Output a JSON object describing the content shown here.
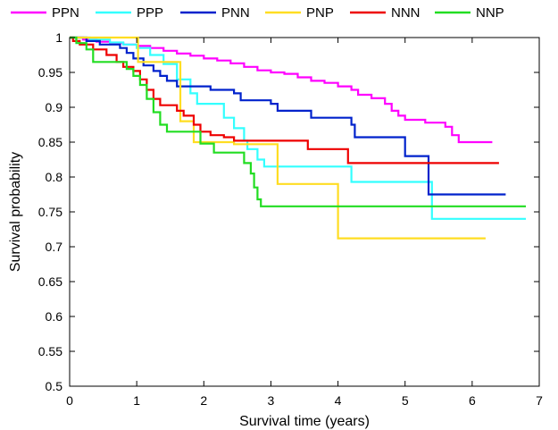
{
  "chart_data": {
    "type": "line",
    "step": true,
    "xlabel": "Survival time (years)",
    "ylabel": "Survival probability",
    "xlim": [
      0,
      7
    ],
    "ylim": [
      0.5,
      1
    ],
    "xticks": [
      0,
      1,
      2,
      3,
      4,
      5,
      6,
      7
    ],
    "yticks": [
      0.5,
      0.55,
      0.6,
      0.65,
      0.7,
      0.75,
      0.8,
      0.85,
      0.9,
      0.95,
      1
    ],
    "grid": false,
    "legend_position": "top",
    "series": [
      {
        "name": "PPN",
        "color": "#ff00ff",
        "points": [
          [
            0,
            1
          ],
          [
            0.2,
            0.997
          ],
          [
            0.4,
            0.994
          ],
          [
            0.6,
            0.992
          ],
          [
            0.8,
            0.99
          ],
          [
            1.0,
            0.988
          ],
          [
            1.2,
            0.985
          ],
          [
            1.4,
            0.981
          ],
          [
            1.6,
            0.977
          ],
          [
            1.8,
            0.974
          ],
          [
            2.0,
            0.97
          ],
          [
            2.2,
            0.967
          ],
          [
            2.4,
            0.963
          ],
          [
            2.6,
            0.958
          ],
          [
            2.8,
            0.953
          ],
          [
            3.0,
            0.95
          ],
          [
            3.2,
            0.948
          ],
          [
            3.4,
            0.943
          ],
          [
            3.6,
            0.938
          ],
          [
            3.8,
            0.935
          ],
          [
            4.0,
            0.93
          ],
          [
            4.2,
            0.925
          ],
          [
            4.3,
            0.918
          ],
          [
            4.5,
            0.913
          ],
          [
            4.7,
            0.905
          ],
          [
            4.8,
            0.895
          ],
          [
            4.9,
            0.888
          ],
          [
            5.0,
            0.882
          ],
          [
            5.3,
            0.878
          ],
          [
            5.6,
            0.872
          ],
          [
            5.7,
            0.86
          ],
          [
            5.8,
            0.85
          ],
          [
            6.3,
            0.85
          ]
        ]
      },
      {
        "name": "PPP",
        "color": "#33ffff",
        "points": [
          [
            0,
            1
          ],
          [
            0.3,
            0.997
          ],
          [
            0.6,
            0.993
          ],
          [
            0.8,
            0.99
          ],
          [
            1.0,
            0.985
          ],
          [
            1.2,
            0.975
          ],
          [
            1.4,
            0.962
          ],
          [
            1.6,
            0.94
          ],
          [
            1.8,
            0.92
          ],
          [
            1.9,
            0.905
          ],
          [
            2.1,
            0.905
          ],
          [
            2.3,
            0.885
          ],
          [
            2.45,
            0.87
          ],
          [
            2.6,
            0.852
          ],
          [
            2.65,
            0.84
          ],
          [
            2.8,
            0.825
          ],
          [
            2.9,
            0.815
          ],
          [
            3.5,
            0.815
          ],
          [
            4.0,
            0.815
          ],
          [
            4.2,
            0.793
          ],
          [
            5.0,
            0.793
          ],
          [
            5.35,
            0.793
          ],
          [
            5.4,
            0.74
          ],
          [
            6.8,
            0.74
          ]
        ]
      },
      {
        "name": "PNN",
        "color": "#0022cc",
        "points": [
          [
            0,
            1
          ],
          [
            0.25,
            0.995
          ],
          [
            0.45,
            0.99
          ],
          [
            0.75,
            0.985
          ],
          [
            0.85,
            0.978
          ],
          [
            0.95,
            0.97
          ],
          [
            1.1,
            0.96
          ],
          [
            1.25,
            0.952
          ],
          [
            1.35,
            0.945
          ],
          [
            1.45,
            0.938
          ],
          [
            1.6,
            0.93
          ],
          [
            2.0,
            0.93
          ],
          [
            2.1,
            0.925
          ],
          [
            2.45,
            0.92
          ],
          [
            2.55,
            0.91
          ],
          [
            3.0,
            0.905
          ],
          [
            3.1,
            0.895
          ],
          [
            3.5,
            0.895
          ],
          [
            3.6,
            0.885
          ],
          [
            4.0,
            0.885
          ],
          [
            4.2,
            0.875
          ],
          [
            4.25,
            0.857
          ],
          [
            5.0,
            0.857
          ],
          [
            5.0,
            0.83
          ],
          [
            5.3,
            0.83
          ],
          [
            5.35,
            0.775
          ],
          [
            6.5,
            0.775
          ]
        ]
      },
      {
        "name": "PNP",
        "color": "#ffdd22",
        "points": [
          [
            0,
            1
          ],
          [
            1.0,
            1
          ],
          [
            1.02,
            0.965
          ],
          [
            1.6,
            0.965
          ],
          [
            1.65,
            0.88
          ],
          [
            1.8,
            0.88
          ],
          [
            1.85,
            0.85
          ],
          [
            2.4,
            0.85
          ],
          [
            2.45,
            0.847
          ],
          [
            3.05,
            0.847
          ],
          [
            3.1,
            0.79
          ],
          [
            3.95,
            0.79
          ],
          [
            4.0,
            0.712
          ],
          [
            6.2,
            0.712
          ]
        ]
      },
      {
        "name": "NNN",
        "color": "#ee0000",
        "points": [
          [
            0,
            1
          ],
          [
            0.05,
            0.995
          ],
          [
            0.15,
            0.99
          ],
          [
            0.35,
            0.983
          ],
          [
            0.55,
            0.975
          ],
          [
            0.7,
            0.965
          ],
          [
            0.8,
            0.958
          ],
          [
            0.95,
            0.952
          ],
          [
            1.05,
            0.94
          ],
          [
            1.15,
            0.925
          ],
          [
            1.25,
            0.912
          ],
          [
            1.35,
            0.903
          ],
          [
            1.6,
            0.895
          ],
          [
            1.7,
            0.888
          ],
          [
            1.85,
            0.875
          ],
          [
            1.95,
            0.865
          ],
          [
            2.1,
            0.86
          ],
          [
            2.3,
            0.857
          ],
          [
            2.45,
            0.852
          ],
          [
            3.5,
            0.852
          ],
          [
            3.55,
            0.84
          ],
          [
            4.1,
            0.84
          ],
          [
            4.15,
            0.82
          ],
          [
            6.4,
            0.82
          ]
        ]
      },
      {
        "name": "NNP",
        "color": "#22dd22",
        "points": [
          [
            0,
            1
          ],
          [
            0.1,
            0.992
          ],
          [
            0.25,
            0.983
          ],
          [
            0.35,
            0.965
          ],
          [
            0.7,
            0.965
          ],
          [
            0.85,
            0.955
          ],
          [
            0.95,
            0.945
          ],
          [
            1.05,
            0.932
          ],
          [
            1.15,
            0.912
          ],
          [
            1.25,
            0.893
          ],
          [
            1.35,
            0.875
          ],
          [
            1.45,
            0.865
          ],
          [
            1.85,
            0.865
          ],
          [
            1.95,
            0.848
          ],
          [
            2.1,
            0.848
          ],
          [
            2.15,
            0.835
          ],
          [
            2.55,
            0.835
          ],
          [
            2.6,
            0.82
          ],
          [
            2.7,
            0.805
          ],
          [
            2.75,
            0.785
          ],
          [
            2.8,
            0.768
          ],
          [
            2.85,
            0.758
          ],
          [
            6.8,
            0.758
          ]
        ]
      }
    ]
  }
}
